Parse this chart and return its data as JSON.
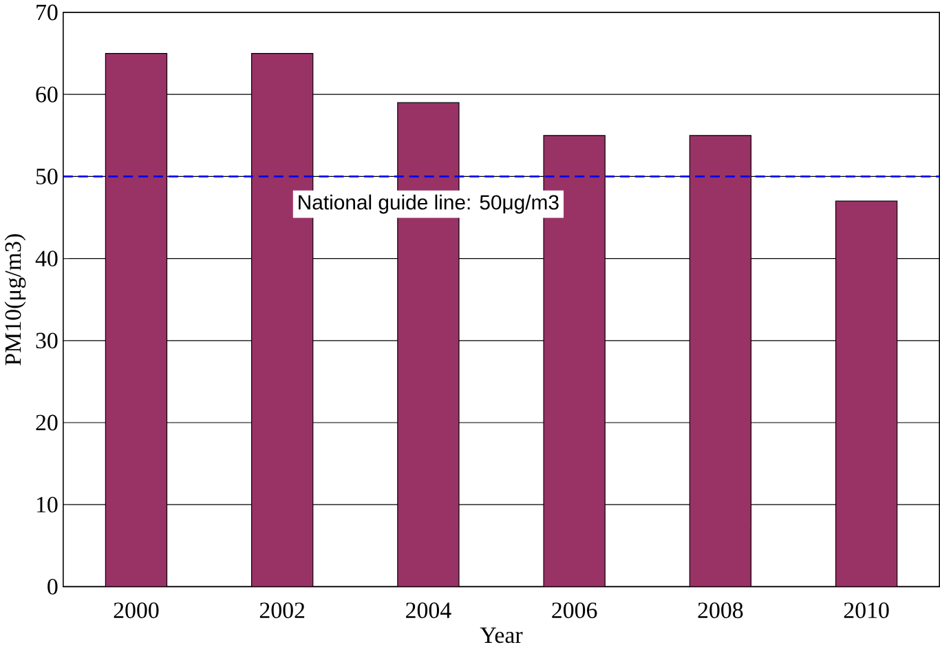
{
  "chart_data": {
    "type": "bar",
    "xlabel": "Year",
    "ylabel": "PM10(μg/m3)",
    "categories": [
      "2000",
      "2002",
      "2004",
      "2006",
      "2008",
      "2010"
    ],
    "values": [
      65,
      65,
      59,
      55,
      55,
      47
    ],
    "color": "#993366",
    "ylim": [
      0,
      70
    ],
    "yticks": [
      0,
      10,
      20,
      30,
      40,
      50,
      60,
      70
    ],
    "grid": "y",
    "ref_lines": [
      {
        "axis": "y",
        "value": 50,
        "label": "National guide line: 50μg/m3",
        "color": "#0000ff",
        "line_style": "dashed"
      }
    ]
  }
}
